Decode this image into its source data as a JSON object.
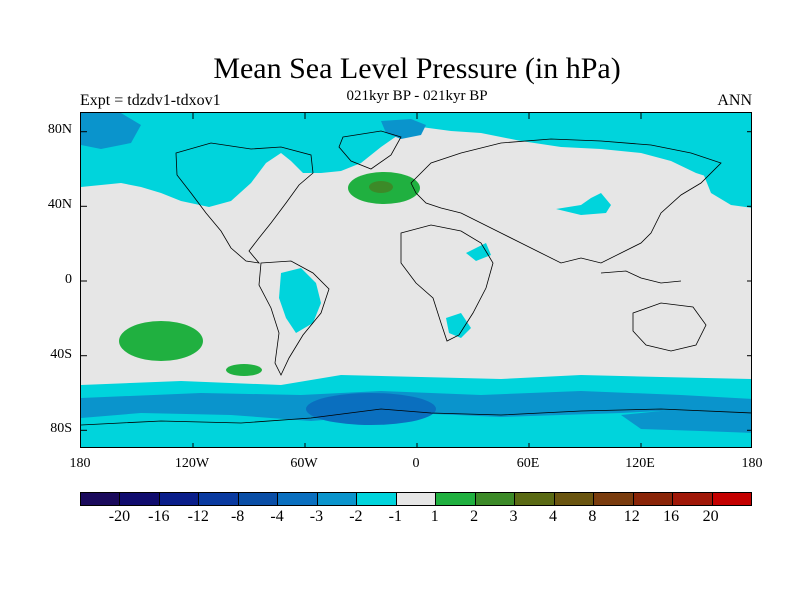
{
  "title": "Mean Sea Level Pressure (in hPa)",
  "subtitle": "021kyr BP - 021kyr BP",
  "experiment": "Expt = tdzdv1-tdxov1",
  "season": "ANN",
  "lat_ticks": [
    "80N",
    "40N",
    "0",
    "40S",
    "80S"
  ],
  "lon_ticks": [
    "180",
    "120W",
    "60W",
    "0",
    "60E",
    "120E",
    "180"
  ],
  "colorbar": {
    "colors": [
      "#1a0a5c",
      "#100c6e",
      "#0a1e8a",
      "#0a3aa0",
      "#0a4ea6",
      "#0a6fbf",
      "#0a94cc",
      "#00d4dc",
      "#e6e6e6",
      "#20b040",
      "#3c8a28",
      "#5a6a14",
      "#6a5510",
      "#7a3c0e",
      "#8a2508",
      "#a01808",
      "#c40000"
    ],
    "labels": [
      "-20",
      "-16",
      "-12",
      "-8",
      "-4",
      "-3",
      "-2",
      "-1",
      "1",
      "2",
      "3",
      "4",
      "8",
      "12",
      "16",
      "20"
    ]
  },
  "chart_data": {
    "type": "heatmap",
    "title": "Mean Sea Level Pressure (in hPa)",
    "subtitle": "021kyr BP - 021kyr BP",
    "projection": "cylindrical equidistant",
    "xlim": [
      -180,
      180
    ],
    "ylim": [
      -90,
      90
    ],
    "units": "hPa",
    "levels": [
      -20,
      -16,
      -12,
      -8,
      -4,
      -3,
      -2,
      -1,
      1,
      2,
      3,
      4,
      8,
      12,
      16,
      20
    ],
    "features": [
      {
        "region": "North Atlantic",
        "range": "1 to 3",
        "lon": -18,
        "lat": 50
      },
      {
        "region": "South Pacific",
        "range": "1 to 2",
        "lon": -143,
        "lat": -32
      },
      {
        "region": "South Pacific (small)",
        "range": "1 to 2",
        "lon": -97,
        "lat": -47
      },
      {
        "region": "Southern Ocean",
        "range": "-3 to -2",
        "lat": -68
      },
      {
        "region": "Weddell Sea",
        "range": "-4 to -3",
        "lon": -20,
        "lat": -70
      },
      {
        "region": "Arctic / North Pacific / North America",
        "range": "-2 to -1"
      },
      {
        "region": "South America",
        "range": "-2 to -1",
        "lon": -60,
        "lat": -15
      },
      {
        "region": "Southern Africa",
        "range": "-2 to -1",
        "lon": 25,
        "lat": -28
      }
    ]
  }
}
